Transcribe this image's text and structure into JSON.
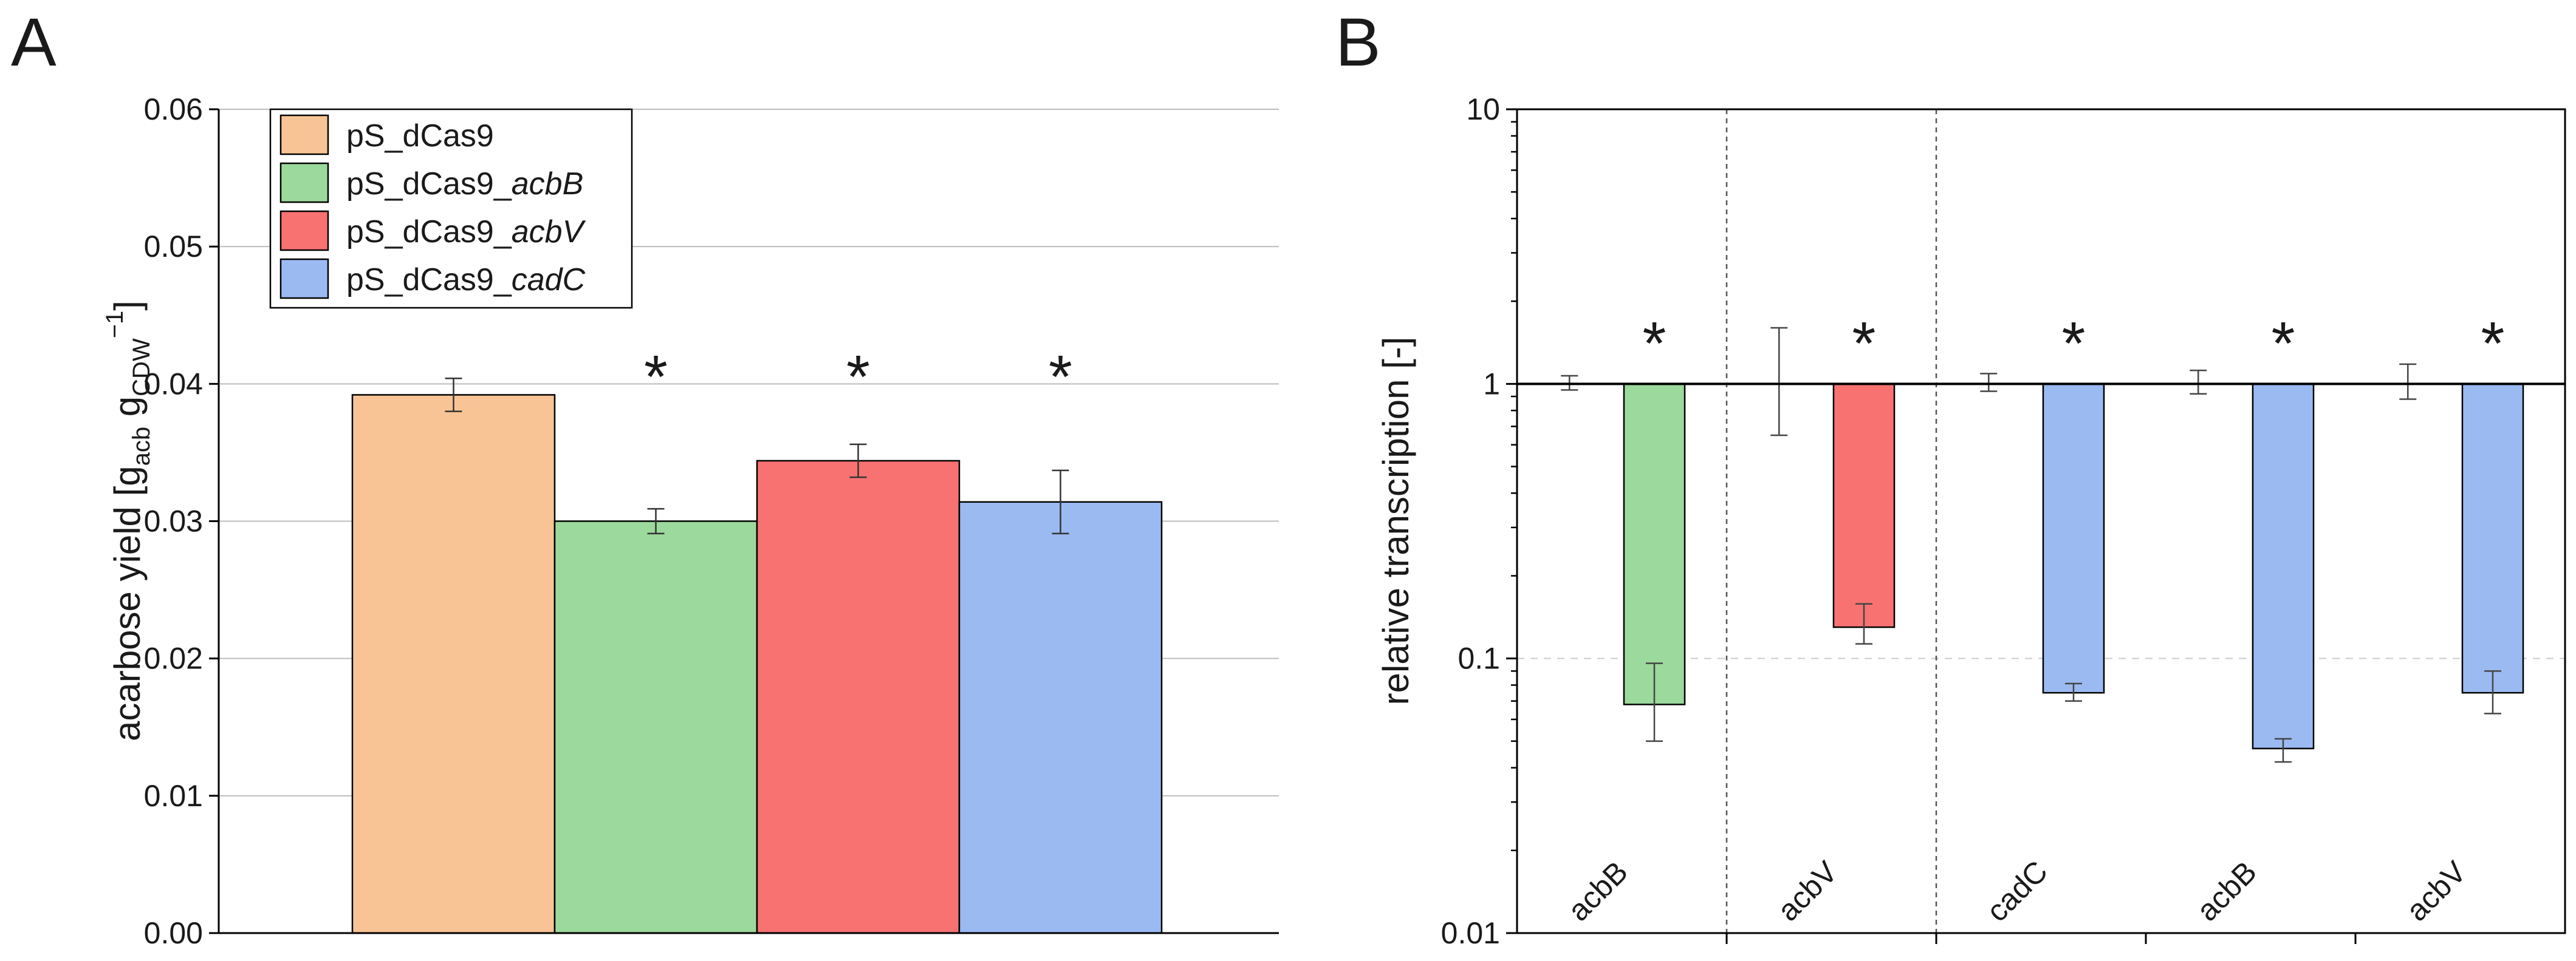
{
  "panels": [
    {
      "letter": "A"
    },
    {
      "letter": "B"
    }
  ],
  "colors": {
    "control": "#f8c495",
    "acbB": "#9cd99c",
    "acbV": "#f87272",
    "cadC": "#9bbaf2",
    "axis": "#000000",
    "grid": "#bdbdbd"
  },
  "chart_data": [
    {
      "panel": "A",
      "type": "bar",
      "ylabel_parts": [
        "acarbose yield [g",
        "acb",
        " g",
        "CDW",
        "−1",
        "]"
      ],
      "ylim": [
        0,
        0.06
      ],
      "yticks": [
        "0.00",
        "0.01",
        "0.02",
        "0.03",
        "0.04",
        "0.05",
        "0.06"
      ],
      "grid": true,
      "legend_position": "top-left",
      "legend": [
        {
          "prefix": "pS_dCas9",
          "italic": "",
          "color_key": "control"
        },
        {
          "prefix": "pS_dCas9_",
          "italic": "acbB",
          "color_key": "acbB"
        },
        {
          "prefix": "pS_dCas9_",
          "italic": "acbV",
          "color_key": "acbV"
        },
        {
          "prefix": "pS_dCas9_",
          "italic": "cadC",
          "color_key": "cadC"
        }
      ],
      "bars": [
        {
          "value": 0.0392,
          "err": 0.0012,
          "sig": "",
          "color_key": "control"
        },
        {
          "value": 0.03,
          "err": 0.0009,
          "sig": "*",
          "color_key": "acbB"
        },
        {
          "value": 0.0344,
          "err": 0.0012,
          "sig": "*",
          "color_key": "acbV"
        },
        {
          "value": 0.0314,
          "err": 0.0023,
          "sig": "*",
          "color_key": "cadC"
        }
      ]
    },
    {
      "panel": "B",
      "type": "bar",
      "scale": "log",
      "ylabel": "relative transcription [-]",
      "ylim": [
        0.01,
        10
      ],
      "yticks": [
        "0.01",
        "0.1",
        "1",
        "10"
      ],
      "groups": [
        {
          "label": "acbB",
          "control": {
            "value": 1,
            "err_low": 0.05,
            "err_high": 0.07
          },
          "sample": {
            "value": 0.068,
            "err_low": 0.018,
            "err_high": 0.028,
            "color_key": "acbB"
          },
          "sig": "*"
        },
        {
          "label": "acbV",
          "control": {
            "value": 1,
            "err_low": 0.35,
            "err_high": 0.6
          },
          "sample": {
            "value": 0.13,
            "err_low": 0.017,
            "err_high": 0.028,
            "color_key": "acbV"
          },
          "sig": "*"
        },
        {
          "label": "cadC",
          "control": {
            "value": 1,
            "err_low": 0.06,
            "err_high": 0.09
          },
          "sample": {
            "value": 0.075,
            "err_low": 0.005,
            "err_high": 0.006,
            "color_key": "cadC"
          },
          "sig": "*"
        },
        {
          "label": "acbB",
          "control": {
            "value": 1,
            "err_low": 0.08,
            "err_high": 0.12
          },
          "sample": {
            "value": 0.047,
            "err_low": 0.005,
            "err_high": 0.004,
            "color_key": "cadC"
          },
          "sig": "*"
        },
        {
          "label": "acbV",
          "control": {
            "value": 1,
            "err_low": 0.12,
            "err_high": 0.18
          },
          "sample": {
            "value": 0.075,
            "err_low": 0.012,
            "err_high": 0.015,
            "color_key": "cadC"
          },
          "sig": "*"
        }
      ],
      "separators_after_group": [
        0,
        1
      ],
      "reference_line": 1,
      "minor_gridline": 0.1
    }
  ]
}
